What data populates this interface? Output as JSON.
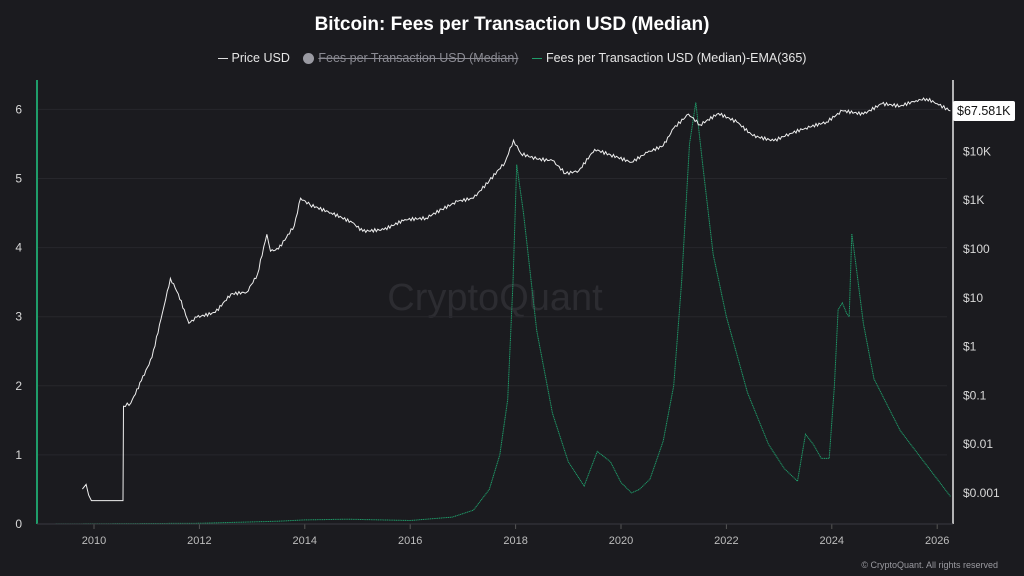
{
  "chart_data": {
    "type": "line",
    "title": "Bitcoin: Fees per Transaction USD (Median)",
    "legend": [
      {
        "label": "Price USD",
        "color": "#e6e6e6",
        "visible": true
      },
      {
        "label": "Fees per Transaction USD (Median)",
        "color": "#9a9aa2",
        "visible": false
      },
      {
        "label": "Fees per Transaction USD (Median)-EMA(365)",
        "color": "#1f9d6a",
        "visible": true
      }
    ],
    "x_ticks": [
      "2010",
      "2012",
      "2014",
      "2016",
      "2018",
      "2020",
      "2022",
      "2024",
      "2026"
    ],
    "left_axis": {
      "ticks": [
        "0",
        "1",
        "2",
        "3",
        "4",
        "5",
        "6"
      ],
      "range": [
        0,
        6.3
      ],
      "scale": "linear"
    },
    "right_axis": {
      "ticks": [
        "$0.001",
        "$0.01",
        "$0.1",
        "$1",
        "$10",
        "$100",
        "$1K",
        "$10K"
      ],
      "range": [
        0.0005,
        200000
      ],
      "scale": "log"
    },
    "last_price_label": "$67.581K",
    "grid": true,
    "legend_placement": "top",
    "series": [
      {
        "name": "Price USD",
        "axis": "right",
        "x": [
          2009.78,
          2009.85,
          2009.9,
          2009.95,
          2010.0,
          2010.55,
          2010.56,
          2010.7,
          2010.9,
          2011.1,
          2011.3,
          2011.45,
          2011.6,
          2011.8,
          2011.95,
          2012.3,
          2012.6,
          2012.9,
          2013.1,
          2013.28,
          2013.35,
          2013.5,
          2013.8,
          2013.92,
          2014.1,
          2014.5,
          2014.9,
          2015.1,
          2015.5,
          2015.9,
          2016.3,
          2016.6,
          2016.9,
          2017.2,
          2017.5,
          2017.8,
          2017.96,
          2018.1,
          2018.4,
          2018.7,
          2018.95,
          2019.2,
          2019.5,
          2019.8,
          2020.2,
          2020.5,
          2020.8,
          2021.0,
          2021.28,
          2021.5,
          2021.85,
          2022.2,
          2022.5,
          2022.9,
          2023.2,
          2023.5,
          2023.9,
          2024.2,
          2024.6,
          2024.95,
          2025.3,
          2025.6,
          2025.8,
          2026.0,
          2026.25
        ],
        "y": [
          0.0012,
          0.0015,
          0.0009,
          0.0007,
          0.0007,
          0.0007,
          0.06,
          0.07,
          0.2,
          0.6,
          5,
          25,
          12,
          3,
          4,
          5,
          12,
          13,
          30,
          200,
          90,
          100,
          300,
          1100,
          800,
          550,
          350,
          230,
          250,
          400,
          430,
          650,
          950,
          1100,
          2500,
          6000,
          17000,
          9000,
          7000,
          6500,
          3500,
          4000,
          11000,
          8500,
          6000,
          9500,
          13000,
          30000,
          58000,
          35000,
          60000,
          40000,
          21000,
          16500,
          23000,
          30000,
          40000,
          68000,
          58000,
          95000,
          85000,
          110000,
          120000,
          95000,
          67581
        ]
      },
      {
        "name": "Fees per Transaction USD (Median)-EMA(365)",
        "axis": "left",
        "x": [
          2009.0,
          2012.0,
          2013.5,
          2014.0,
          2014.8,
          2016.0,
          2016.8,
          2017.2,
          2017.5,
          2017.7,
          2017.85,
          2017.95,
          2018.02,
          2018.15,
          2018.4,
          2018.7,
          2019.0,
          2019.3,
          2019.55,
          2019.8,
          2020.0,
          2020.2,
          2020.35,
          2020.55,
          2020.8,
          2021.0,
          2021.15,
          2021.3,
          2021.42,
          2021.55,
          2021.75,
          2022.0,
          2022.4,
          2022.8,
          2023.1,
          2023.35,
          2023.5,
          2023.65,
          2023.8,
          2023.95,
          2024.05,
          2024.12,
          2024.2,
          2024.28,
          2024.33,
          2024.38,
          2024.45,
          2024.6,
          2024.8,
          2025.0,
          2025.3,
          2025.7,
          2026.0,
          2026.25
        ],
        "y": [
          0.0,
          0.01,
          0.04,
          0.06,
          0.07,
          0.05,
          0.1,
          0.2,
          0.5,
          1.0,
          1.8,
          3.5,
          5.2,
          4.5,
          2.8,
          1.6,
          0.9,
          0.55,
          1.05,
          0.9,
          0.6,
          0.45,
          0.5,
          0.65,
          1.2,
          2.0,
          3.5,
          5.5,
          6.1,
          5.2,
          3.9,
          3.0,
          1.9,
          1.15,
          0.8,
          0.62,
          1.3,
          1.15,
          0.95,
          0.95,
          2.0,
          3.1,
          3.2,
          3.05,
          3.0,
          4.2,
          3.8,
          2.9,
          2.1,
          1.8,
          1.35,
          0.95,
          0.65,
          0.4
        ]
      }
    ]
  },
  "watermark": "CryptoQuant",
  "footer": "© CryptoQuant. All rights reserved"
}
